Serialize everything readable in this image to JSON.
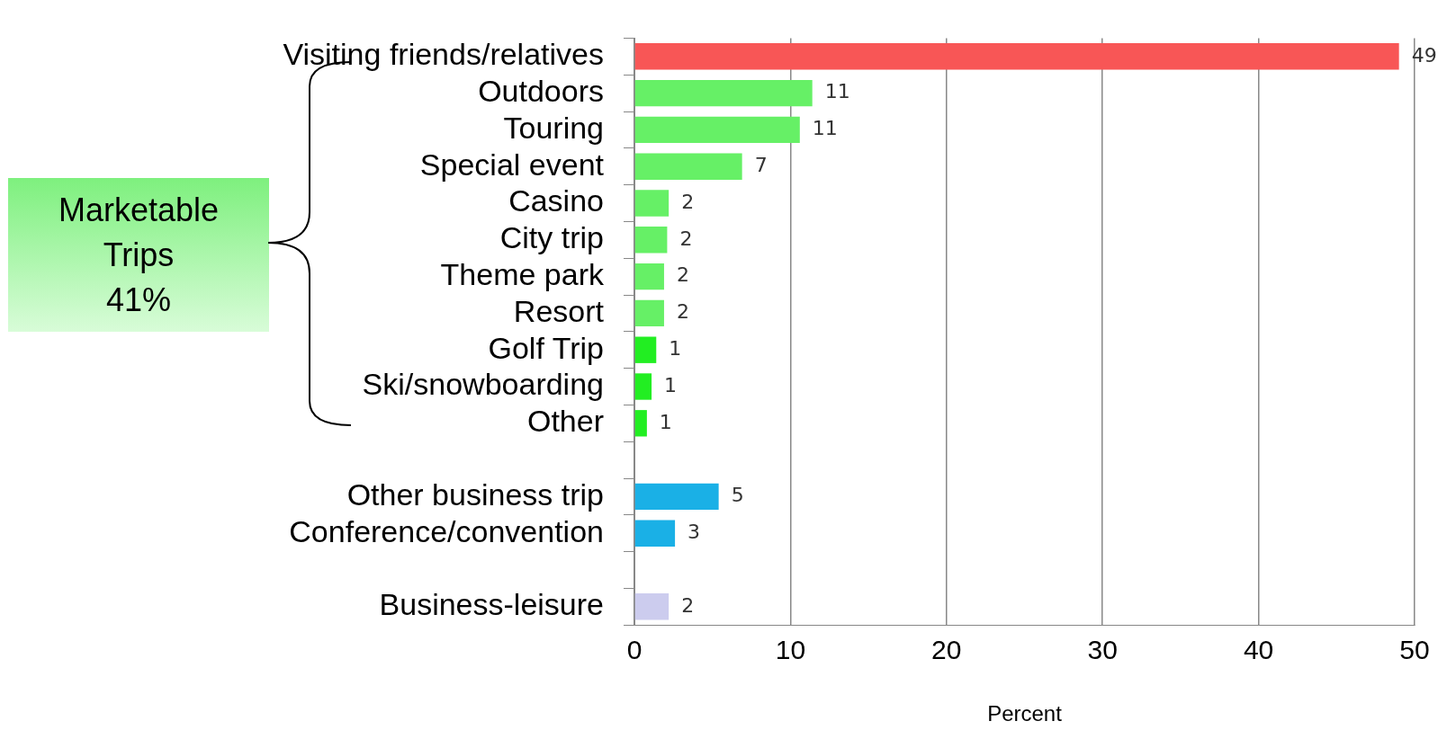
{
  "chart_data": {
    "type": "bar",
    "orientation": "horizontal",
    "categories": [
      "Visiting friends/relatives",
      "Outdoors",
      "Touring",
      "Special event",
      "Casino",
      "City trip",
      "Theme park",
      "Resort",
      "Golf Trip",
      "Ski/snowboarding",
      "Other",
      null,
      "Other business trip",
      "Conference/convention",
      null,
      "Business-leisure"
    ],
    "values": [
      49,
      11.4,
      10.6,
      6.9,
      2.2,
      2.1,
      1.9,
      1.9,
      1.4,
      1.1,
      0.8,
      null,
      5.4,
      2.6,
      null,
      2.2
    ],
    "value_labels": [
      "49",
      "11",
      "11",
      "7",
      "2",
      "2",
      "2",
      "2",
      "1",
      "1",
      "1",
      null,
      "5",
      "3",
      null,
      "2"
    ],
    "colors": [
      "#f85656",
      "#66f066",
      "#66f066",
      "#66f066",
      "#66f066",
      "#66f066",
      "#66f066",
      "#66f066",
      "#22ee22",
      "#22ee22",
      "#22ee22",
      "#ffffff",
      "#1ab0e6",
      "#1ab0e6",
      "#ffffff",
      "#ccccee"
    ],
    "xlim": [
      0,
      50
    ],
    "xticks": [
      0,
      10,
      20,
      30,
      40,
      50
    ],
    "xlabel": "Percent",
    "grid": "x",
    "legend": false,
    "annotations": [
      "Marketable\nTrips\n41%"
    ]
  }
}
